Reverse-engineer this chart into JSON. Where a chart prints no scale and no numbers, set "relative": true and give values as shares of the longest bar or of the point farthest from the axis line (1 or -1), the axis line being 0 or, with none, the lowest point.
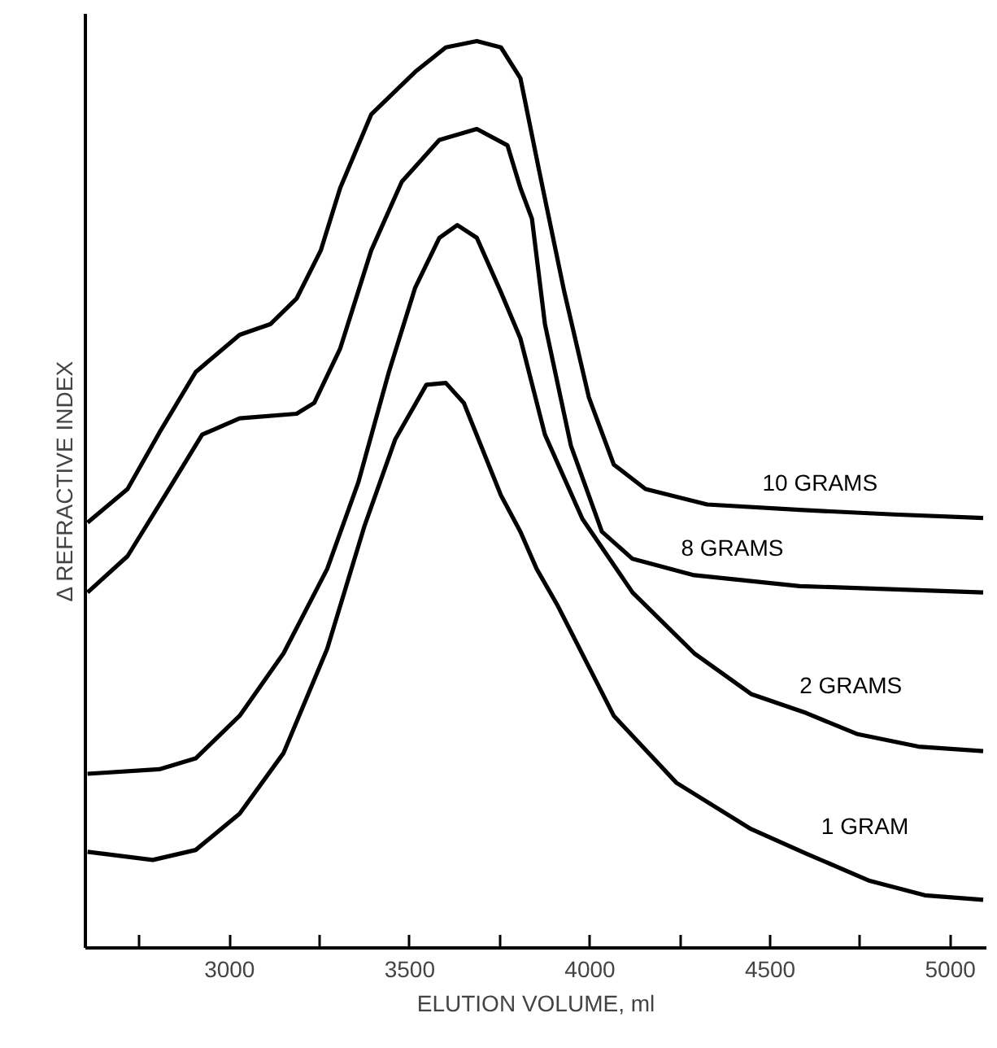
{
  "chart_data": {
    "type": "line",
    "relative": true,
    "xlabel": "ELUTION VOLUME, ml",
    "ylabel": "Δ REFRACTIVE INDEX",
    "xlim": [
      2600,
      5100
    ],
    "xticks": [
      {
        "value": 2750,
        "label": null
      },
      3000,
      {
        "value": 3250,
        "label": null
      },
      3500,
      {
        "value": 3750,
        "label": null
      },
      4000,
      {
        "value": 4250,
        "label": null
      },
      4500,
      {
        "value": 4750,
        "label": null
      },
      5000
    ],
    "grid": false,
    "marker": "none",
    "line_style": "solid",
    "series": [
      {
        "name": "10 GRAMS",
        "color": "#000000",
        "x": [
          2606,
          2717,
          2805,
          2906,
          3028,
          3114,
          3186,
          3253,
          3307,
          3393,
          3515,
          3600,
          3686,
          3753,
          3807,
          3859,
          3929,
          3997,
          4066,
          4154,
          4325,
          4582,
          4843,
          5091
        ],
        "values": [
          0.469,
          0.506,
          0.568,
          0.635,
          0.676,
          0.688,
          0.716,
          0.769,
          0.838,
          0.919,
          0.966,
          0.993,
          1.0,
          0.993,
          0.959,
          0.857,
          0.723,
          0.607,
          0.533,
          0.506,
          0.489,
          0.483,
          0.478,
          0.474
        ]
      },
      {
        "name": "8 GRAMS",
        "color": "#000000",
        "x": [
          2606,
          2717,
          2821,
          2924,
          3028,
          3186,
          3235,
          3307,
          3393,
          3478,
          3582,
          3686,
          3771,
          3807,
          3839,
          3875,
          3947,
          4033,
          4118,
          4289,
          4582,
          5091
        ],
        "values": [
          0.392,
          0.432,
          0.499,
          0.566,
          0.584,
          0.589,
          0.601,
          0.661,
          0.769,
          0.845,
          0.891,
          0.903,
          0.885,
          0.838,
          0.804,
          0.688,
          0.554,
          0.459,
          0.429,
          0.411,
          0.399,
          0.392
        ]
      },
      {
        "name": "2 GRAMS",
        "color": "#000000",
        "x": [
          2606,
          2805,
          2906,
          3028,
          3150,
          3271,
          3357,
          3442,
          3515,
          3582,
          3632,
          3686,
          3753,
          3807,
          3875,
          3979,
          4118,
          4289,
          4447,
          4600,
          4740,
          4911,
          5091
        ],
        "values": [
          0.192,
          0.197,
          0.209,
          0.256,
          0.325,
          0.418,
          0.513,
          0.635,
          0.728,
          0.783,
          0.797,
          0.783,
          0.723,
          0.672,
          0.566,
          0.473,
          0.392,
          0.325,
          0.28,
          0.259,
          0.236,
          0.222,
          0.217
        ]
      },
      {
        "name": "1 GRAM",
        "color": "#000000",
        "x": [
          2606,
          2787,
          2906,
          3028,
          3150,
          3271,
          3375,
          3460,
          3546,
          3600,
          3650,
          3753,
          3807,
          3852,
          3911,
          4066,
          4240,
          4447,
          4600,
          4776,
          4929,
          5091
        ],
        "values": [
          0.106,
          0.097,
          0.108,
          0.148,
          0.215,
          0.33,
          0.466,
          0.561,
          0.621,
          0.623,
          0.601,
          0.499,
          0.459,
          0.418,
          0.377,
          0.256,
          0.182,
          0.131,
          0.104,
          0.074,
          0.058,
          0.053
        ]
      }
    ]
  }
}
